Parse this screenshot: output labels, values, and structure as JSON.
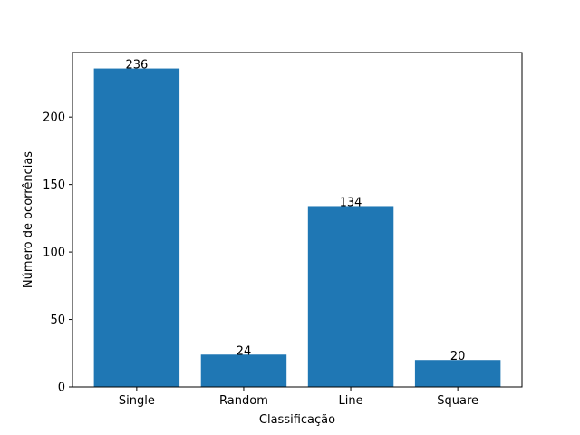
{
  "chart_data": {
    "type": "bar",
    "categories": [
      "Single",
      "Random",
      "Line",
      "Square"
    ],
    "values": [
      236,
      24,
      134,
      20
    ],
    "data_labels": [
      "236",
      "24",
      "134",
      "20"
    ],
    "title": "",
    "xlabel": "Classificação",
    "ylabel": "Número de ocorrências",
    "ylim": [
      0,
      247.8
    ],
    "yticks": [
      0,
      50,
      100,
      150,
      200
    ],
    "grid": false,
    "bar_color": "#1f77b4"
  }
}
